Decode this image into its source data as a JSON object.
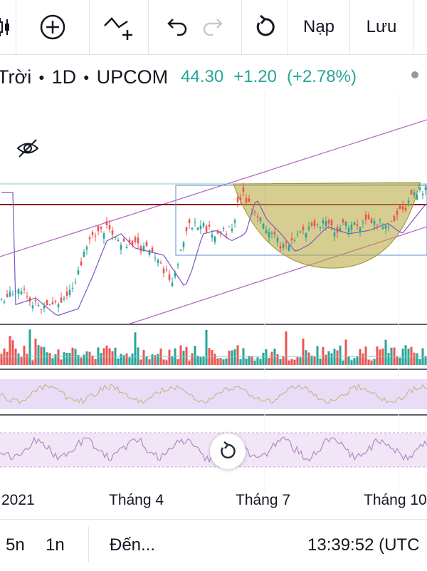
{
  "toolbar": {
    "buttons": [
      {
        "name": "candlestick-icon"
      },
      {
        "name": "add-icon"
      },
      {
        "name": "compare-icon"
      },
      {
        "name": "undo-icon"
      },
      {
        "name": "redo-icon"
      },
      {
        "name": "reload-icon"
      }
    ],
    "load_label": "Nạp",
    "save_label": "Lưu"
  },
  "symbol": {
    "name_partial": "Trời",
    "interval": "1D",
    "exchange": "UPCOM",
    "price": "44.30",
    "change": "+1.20",
    "change_pct": "(+2.78%)"
  },
  "x_axis": {
    "labels": [
      "2021",
      "Tháng 4",
      "Tháng 7",
      "Tháng 10"
    ]
  },
  "bottom_bar": {
    "range_5y": "5n",
    "range_1y": "1n",
    "goto": "Đến...",
    "clock": "13:39:52 (UTC"
  },
  "colors": {
    "up": "#26a69a",
    "down": "#ef5350",
    "channel": "#9c27b0",
    "cup_fill": "#b5a534",
    "resistance": "#8b1a1a",
    "rsi_band": "#e8dcf7",
    "rsi_line": "#b388c7"
  }
}
